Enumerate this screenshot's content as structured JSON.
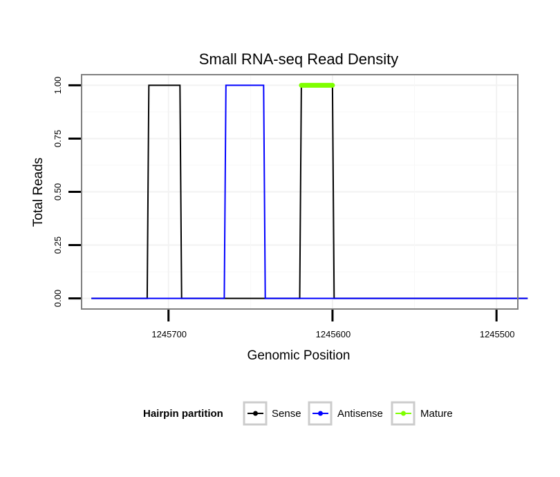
{
  "chart_data": {
    "type": "line",
    "title": "Small RNA-seq Read Density",
    "xlabel": "Genomic Position",
    "ylabel": "Total Reads",
    "xlim": [
      1245753,
      1245487
    ],
    "x_reversed": true,
    "ylim": [
      -0.05,
      1.05
    ],
    "xticks": [
      1245700,
      1245600,
      1245500
    ],
    "yticks": [
      0.0,
      0.25,
      0.5,
      0.75,
      1.0
    ],
    "ytick_labels": [
      "0.00",
      "0.25",
      "0.50",
      "0.75",
      "1.00"
    ],
    "grid": true,
    "legend": {
      "title": "Hairpin partition",
      "position": "bottom",
      "entries": [
        "Sense",
        "Antisense",
        "Mature"
      ]
    },
    "series": [
      {
        "name": "Sense",
        "color": "#000000",
        "x": [
          1245747,
          1245713,
          1245712,
          1245693,
          1245692,
          1245666,
          1245665,
          1245647,
          1245646,
          1245620,
          1245619,
          1245600,
          1245599,
          1245481
        ],
        "y": [
          0,
          0,
          1,
          1,
          0,
          0,
          0,
          0,
          0,
          0,
          1,
          1,
          0,
          0
        ]
      },
      {
        "name": "Antisense",
        "color": "#0000ff",
        "x": [
          1245747,
          1245666,
          1245665,
          1245642,
          1245641,
          1245481
        ],
        "y": [
          0,
          0,
          1,
          1,
          0,
          0
        ]
      },
      {
        "name": "Mature",
        "color": "#7fff00",
        "x": [
          1245619,
          1245600
        ],
        "y": [
          1,
          1
        ]
      }
    ]
  }
}
